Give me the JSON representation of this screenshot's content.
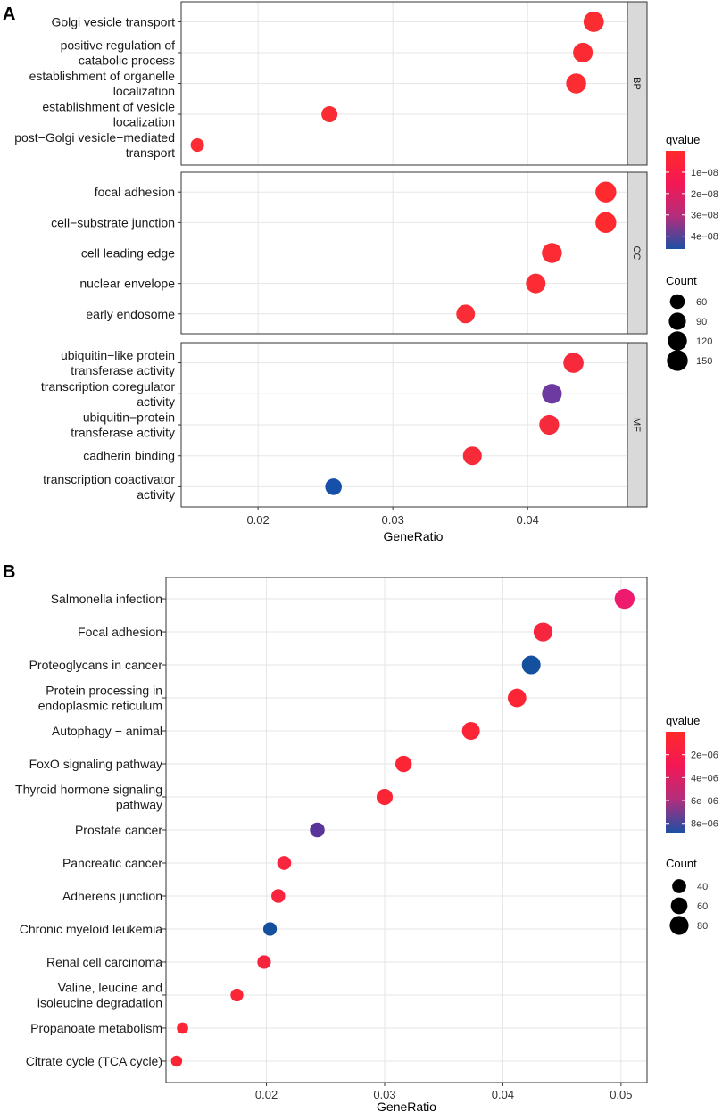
{
  "chart_data": [
    {
      "panel": "A",
      "type": "scatter",
      "xlabel": "GeneRatio",
      "xlim": [
        0.0143,
        0.0474
      ],
      "xticks": [
        0.02,
        0.03,
        0.04
      ],
      "xtick_labels": [
        "0.02",
        "0.03",
        "0.04"
      ],
      "facets": [
        {
          "name": "BP",
          "points": [
            {
              "label": [
                "Golgi vesicle transport"
              ],
              "x": 0.0449,
              "count": 140,
              "qvalue": 5e-10,
              "color": "#fb2d32"
            },
            {
              "label": [
                "positive regulation of",
                "catabolic process"
              ],
              "x": 0.0441,
              "count": 130,
              "qvalue": 6e-10,
              "color": "#fb2b33"
            },
            {
              "label": [
                "establishment of organelle",
                "localization"
              ],
              "x": 0.0436,
              "count": 135,
              "qvalue": 8e-10,
              "color": "#fb2d33"
            },
            {
              "label": [
                "establishment of vesicle",
                "localization"
              ],
              "x": 0.0253,
              "count": 75,
              "qvalue": 1e-09,
              "color": "#fb2c34"
            },
            {
              "label": [
                "post−Golgi vesicle−mediated",
                "transport"
              ],
              "x": 0.0155,
              "count": 45,
              "qvalue": 1e-09,
              "color": "#fb2c34"
            }
          ]
        },
        {
          "name": "CC",
          "points": [
            {
              "label": [
                "focal adhesion"
              ],
              "x": 0.0458,
              "count": 150,
              "qvalue": 1e-10,
              "color": "#fe2a2e"
            },
            {
              "label": [
                "cell−substrate junction"
              ],
              "x": 0.0458,
              "count": 150,
              "qvalue": 1e-10,
              "color": "#fe2a2e"
            },
            {
              "label": [
                "cell leading edge"
              ],
              "x": 0.0418,
              "count": 135,
              "qvalue": 1e-09,
              "color": "#fb2c34"
            },
            {
              "label": [
                "nuclear envelope"
              ],
              "x": 0.0406,
              "count": 128,
              "qvalue": 1.5e-09,
              "color": "#fb2c34"
            },
            {
              "label": [
                "early endosome"
              ],
              "x": 0.0354,
              "count": 112,
              "qvalue": 2e-09,
              "color": "#fa2c35"
            }
          ]
        },
        {
          "name": "MF",
          "points": [
            {
              "label": [
                "ubiquitin−like protein",
                "transferase activity"
              ],
              "x": 0.0434,
              "count": 138,
              "qvalue": 5e-09,
              "color": "#f62a3b"
            },
            {
              "label": [
                "transcription coregulator",
                "activity"
              ],
              "x": 0.0418,
              "count": 132,
              "qvalue": 3.5e-08,
              "color": "#6c3aa0"
            },
            {
              "label": [
                "ubiquitin−protein",
                "transferase activity"
              ],
              "x": 0.0416,
              "count": 132,
              "qvalue": 6e-09,
              "color": "#f52b3c"
            },
            {
              "label": [
                "cadherin binding"
              ],
              "x": 0.0359,
              "count": 114,
              "qvalue": 4e-09,
              "color": "#f72a3a"
            },
            {
              "label": [
                "transcription coactivator",
                "activity"
              ],
              "x": 0.0256,
              "count": 82,
              "qvalue": 4.5e-08,
              "color": "#1650a8"
            }
          ]
        }
      ],
      "legend": {
        "color_title": "qvalue",
        "color_ticks": [
          {
            "label": "1e−08",
            "value": 1e-08
          },
          {
            "label": "2e−08",
            "value": 2e-08
          },
          {
            "label": "3e−08",
            "value": 3e-08
          },
          {
            "label": "4e−08",
            "value": 4e-08
          }
        ],
        "color_range": [
          0,
          4.6e-08
        ],
        "gradient": [
          "#ff2a2a",
          "#f41755",
          "#b32e7c",
          "#1c4fa5"
        ],
        "size_title": "Count",
        "size_entries": [
          {
            "label": "60",
            "value": 60
          },
          {
            "label": "90",
            "value": 90
          },
          {
            "label": "120",
            "value": 120
          },
          {
            "label": "150",
            "value": 150
          }
        ]
      }
    },
    {
      "panel": "B",
      "type": "scatter",
      "xlabel": "GeneRatio",
      "xlim": [
        0.0115,
        0.0522
      ],
      "xticks": [
        0.02,
        0.03,
        0.04,
        0.05
      ],
      "xtick_labels": [
        "0.02",
        "0.03",
        "0.04",
        "0.05"
      ],
      "points": [
        {
          "label": [
            "Salmonella infection"
          ],
          "x": 0.0503,
          "count": 90,
          "qvalue": 3.5e-06,
          "color": "#ee1a6e"
        },
        {
          "label": [
            "Focal adhesion"
          ],
          "x": 0.0434,
          "count": 80,
          "qvalue": 1.5e-06,
          "color": "#f8253f"
        },
        {
          "label": [
            "Proteoglycans in cancer"
          ],
          "x": 0.0424,
          "count": 78,
          "qvalue": 8.3e-06,
          "color": "#14509e"
        },
        {
          "label": [
            "Protein processing in",
            "endoplasmic reticulum"
          ],
          "x": 0.0412,
          "count": 76,
          "qvalue": 1e-06,
          "color": "#fb2536"
        },
        {
          "label": [
            "Autophagy − animal"
          ],
          "x": 0.0373,
          "count": 70,
          "qvalue": 1e-06,
          "color": "#fb2536"
        },
        {
          "label": [
            "FoxO signaling pathway"
          ],
          "x": 0.0316,
          "count": 58,
          "qvalue": 1e-06,
          "color": "#fb2536"
        },
        {
          "label": [
            "Thyroid hormone signaling",
            "pathway"
          ],
          "x": 0.03,
          "count": 56,
          "qvalue": 1e-06,
          "color": "#fb2536"
        },
        {
          "label": [
            "Prostate cancer"
          ],
          "x": 0.0243,
          "count": 45,
          "qvalue": 7.5e-06,
          "color": "#5a3599"
        },
        {
          "label": [
            "Pancreatic cancer"
          ],
          "x": 0.0215,
          "count": 40,
          "qvalue": 1.5e-06,
          "color": "#f8253f"
        },
        {
          "label": [
            "Adherens junction"
          ],
          "x": 0.021,
          "count": 39,
          "qvalue": 1.5e-06,
          "color": "#f8253f"
        },
        {
          "label": [
            "Chronic myeloid leukemia"
          ],
          "x": 0.0203,
          "count": 37,
          "qvalue": 8.3e-06,
          "color": "#14509e"
        },
        {
          "label": [
            "Renal cell carcinoma"
          ],
          "x": 0.0198,
          "count": 37,
          "qvalue": 2e-06,
          "color": "#f6233f"
        },
        {
          "label": [
            "Valine, leucine and",
            "isoleucine degradation"
          ],
          "x": 0.0175,
          "count": 32,
          "qvalue": 1e-06,
          "color": "#fb2536"
        },
        {
          "label": [
            "Propanoate metabolism"
          ],
          "x": 0.0129,
          "count": 24,
          "qvalue": 1e-06,
          "color": "#fb2536"
        },
        {
          "label": [
            "Citrate cycle (TCA cycle)"
          ],
          "x": 0.0124,
          "count": 23,
          "qvalue": 1e-06,
          "color": "#fb2536"
        }
      ],
      "legend": {
        "color_title": "qvalue",
        "color_ticks": [
          {
            "label": "2e−06",
            "value": 2e-06
          },
          {
            "label": "4e−06",
            "value": 4e-06
          },
          {
            "label": "6e−06",
            "value": 6e-06
          },
          {
            "label": "8e−06",
            "value": 8e-06
          }
        ],
        "color_range": [
          0,
          8.8e-06
        ],
        "gradient": [
          "#ff2a2a",
          "#f41755",
          "#b32e7c",
          "#1c4fa5"
        ],
        "size_title": "Count",
        "size_entries": [
          {
            "label": "40",
            "value": 40
          },
          {
            "label": "60",
            "value": 60
          },
          {
            "label": "80",
            "value": 80
          }
        ]
      }
    }
  ],
  "panels": {
    "a_letter": "A",
    "b_letter": "B"
  }
}
